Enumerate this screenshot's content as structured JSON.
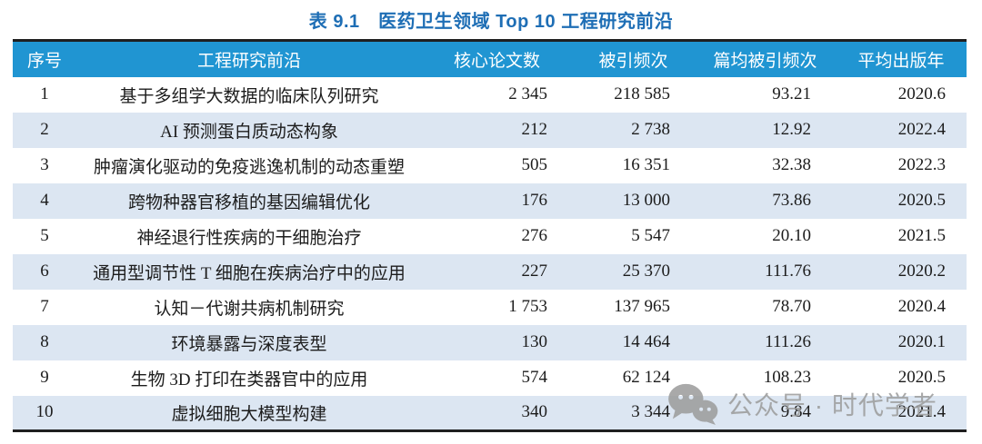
{
  "title": "表 9.1　医药卫生领域 Top 10 工程研究前沿",
  "table": {
    "columns": [
      "序号",
      "工程研究前沿",
      "核心论文数",
      "被引频次",
      "篇均被引频次",
      "平均出版年"
    ],
    "rows": [
      {
        "rank": "1",
        "front": "基于多组学大数据的临床队列研究",
        "core_papers": "2 345",
        "citations": "218 585",
        "citations_per_paper": "93.21",
        "avg_year": "2020.6"
      },
      {
        "rank": "2",
        "front": "AI 预测蛋白质动态构象",
        "core_papers": "212",
        "citations": "2 738",
        "citations_per_paper": "12.92",
        "avg_year": "2022.4"
      },
      {
        "rank": "3",
        "front": "肿瘤演化驱动的免疫逃逸机制的动态重塑",
        "core_papers": "505",
        "citations": "16 351",
        "citations_per_paper": "32.38",
        "avg_year": "2022.3"
      },
      {
        "rank": "4",
        "front": "跨物种器官移植的基因编辑优化",
        "core_papers": "176",
        "citations": "13 000",
        "citations_per_paper": "73.86",
        "avg_year": "2020.5"
      },
      {
        "rank": "5",
        "front": "神经退行性疾病的干细胞治疗",
        "core_papers": "276",
        "citations": "5 547",
        "citations_per_paper": "20.10",
        "avg_year": "2021.5"
      },
      {
        "rank": "6",
        "front": "通用型调节性 T 细胞在疾病治疗中的应用",
        "core_papers": "227",
        "citations": "25 370",
        "citations_per_paper": "111.76",
        "avg_year": "2020.2"
      },
      {
        "rank": "7",
        "front": "认知－代谢共病机制研究",
        "core_papers": "1 753",
        "citations": "137 965",
        "citations_per_paper": "78.70",
        "avg_year": "2020.4"
      },
      {
        "rank": "8",
        "front": "环境暴露与深度表型",
        "core_papers": "130",
        "citations": "14 464",
        "citations_per_paper": "111.26",
        "avg_year": "2020.1"
      },
      {
        "rank": "9",
        "front": "生物 3D 打印在类器官中的应用",
        "core_papers": "574",
        "citations": "62 124",
        "citations_per_paper": "108.23",
        "avg_year": "2020.5"
      },
      {
        "rank": "10",
        "front": "虚拟细胞大模型构建",
        "core_papers": "340",
        "citations": "3 344",
        "citations_per_paper": "9.84",
        "avg_year": "2021.4"
      }
    ]
  },
  "watermark": {
    "icon": "wechat-icon",
    "text": "公众号 · 时代学者"
  },
  "colors": {
    "title_text": "#1e6eb5",
    "header_bg": "#2095d2",
    "header_text": "#ffffff",
    "alt_row_bg": "#dce6f2",
    "body_text": "#1c1c1c",
    "rule": "#1f1f1f",
    "watermark": "#9b9b9b"
  }
}
